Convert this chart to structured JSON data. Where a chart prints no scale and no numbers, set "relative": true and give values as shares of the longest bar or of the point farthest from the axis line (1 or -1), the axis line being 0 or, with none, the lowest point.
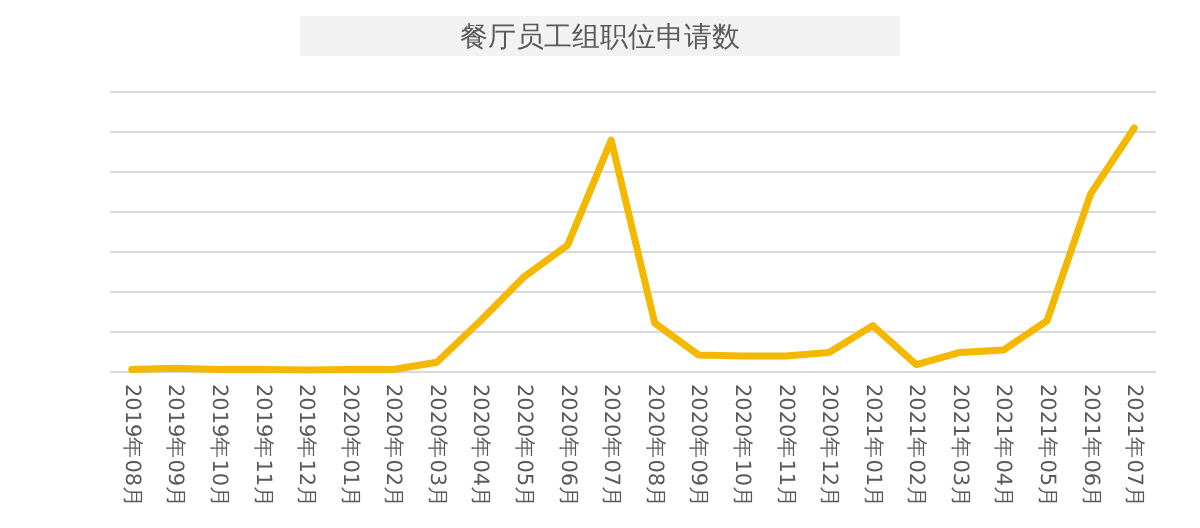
{
  "chart_data": {
    "type": "line",
    "title": "餐厅员工组职位申请数",
    "relative": true,
    "grid": "y",
    "marker": "none",
    "line_style": "solid",
    "categories": [
      "2019年08月",
      "2019年09月",
      "2019年10月",
      "2019年11月",
      "2019年12月",
      "2020年01月",
      "2020年02月",
      "2020年03月",
      "2020年04月",
      "2020年05月",
      "2020年06月",
      "2020年07月",
      "2020年08月",
      "2020年09月",
      "2020年10月",
      "2020年11月",
      "2020年12月",
      "2021年01月",
      "2021年02月",
      "2021年03月",
      "2021年04月",
      "2021年05月",
      "2021年06月",
      "2021年07月"
    ],
    "series": [
      {
        "color": "#f5b800",
        "values": [
          0.01,
          0.015,
          0.01,
          0.01,
          0.008,
          0.01,
          0.01,
          0.04,
          0.21,
          0.39,
          0.52,
          0.95,
          0.2,
          0.07,
          0.066,
          0.066,
          0.08,
          0.19,
          0.03,
          0.08,
          0.09,
          0.21,
          0.73,
          1
        ]
      }
    ]
  }
}
